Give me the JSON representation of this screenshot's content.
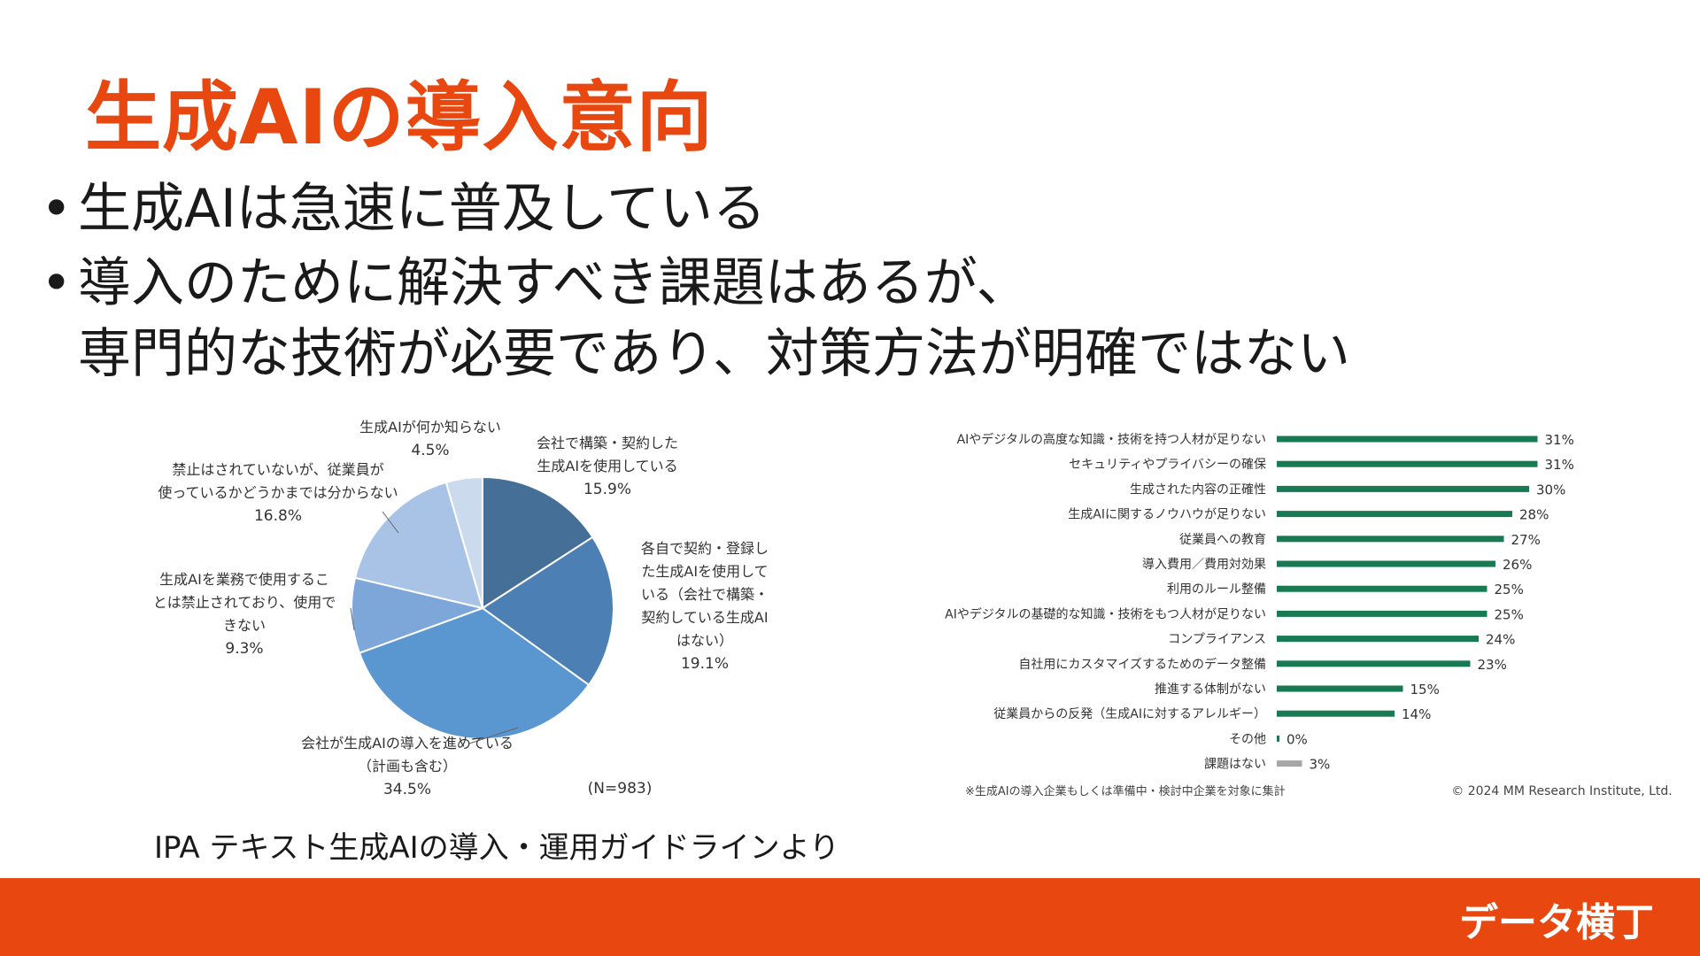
{
  "slide": {
    "title": "生成AIの導入意向",
    "bullets": [
      {
        "lines": [
          "生成AIは急速に普及している"
        ]
      },
      {
        "lines": [
          "導入のために解決すべき課題はあるが、",
          "専門的な技術が必要であり、対策方法が明確ではない"
        ]
      }
    ],
    "source": "IPA テキスト生成AIの導入・運用ガイドラインより",
    "footer_brand": "データ横丁",
    "colors": {
      "accent": "#e8470f",
      "bar": "#177a52",
      "bar_muted": "#a6a6a6"
    }
  },
  "chart_data": [
    {
      "type": "pie",
      "note": "(N=983)",
      "slices": [
        {
          "label_lines": [
            "会社で構築・契約した",
            "生成AIを使用している"
          ],
          "value": 15.9,
          "value_label": "15.9%",
          "color": "#456f96"
        },
        {
          "label_lines": [
            "各自で契約・登録し",
            "た生成AIを使用して",
            "いる（会社で構築・",
            "契約している生成AI",
            "はない）"
          ],
          "value": 19.1,
          "value_label": "19.1%",
          "color": "#4c80b4"
        },
        {
          "label_lines": [
            "会社が生成AIの導入を進めている",
            "（計画も含む）"
          ],
          "value": 34.5,
          "value_label": "34.5%",
          "color": "#5a96cf"
        },
        {
          "label_lines": [
            "生成AIを業務で使用するこ",
            "とは禁止されており、使用で",
            "きない"
          ],
          "value": 9.3,
          "value_label": "9.3%",
          "color": "#7ea7d9"
        },
        {
          "label_lines": [
            "禁止はされていないが、従業員が",
            "使っているかどうかまでは分からない"
          ],
          "value": 16.8,
          "value_label": "16.8%",
          "color": "#a8c3e6"
        },
        {
          "label_lines": [
            "生成AIが何か知らない"
          ],
          "value": 4.5,
          "value_label": "4.5%",
          "color": "#ccdaee"
        }
      ]
    },
    {
      "type": "bar",
      "orientation": "horizontal",
      "categories": [
        "AIやデジタルの高度な知識・技術を持つ人材が足りない",
        "セキュリティやプライバシーの確保",
        "生成された内容の正確性",
        "生成AIに関するノウハウが足りない",
        "従業員への教育",
        "導入費用／費用対効果",
        "利用のルール整備",
        "AIやデジタルの基礎的な知識・技術をもつ人材が足りない",
        "コンプライアンス",
        "自社用にカスタマイズするためのデータ整備",
        "推進する体制がない",
        "従業員からの反発（生成AIに対するアレルギー）",
        "その他",
        "課題はない"
      ],
      "values": [
        31,
        31,
        30,
        28,
        27,
        26,
        25,
        25,
        24,
        23,
        15,
        14,
        0,
        3
      ],
      "value_labels": [
        "31%",
        "31%",
        "30%",
        "28%",
        "27%",
        "26%",
        "25%",
        "25%",
        "24%",
        "23%",
        "15%",
        "14%",
        "0%",
        "3%"
      ],
      "muted_categories": [
        "課題はない"
      ],
      "footnote": "※生成AIの導入企業もしくは準備中・検討中企業を対象に集計",
      "copyright": "© 2024 MM Research Institute, Ltd."
    }
  ]
}
